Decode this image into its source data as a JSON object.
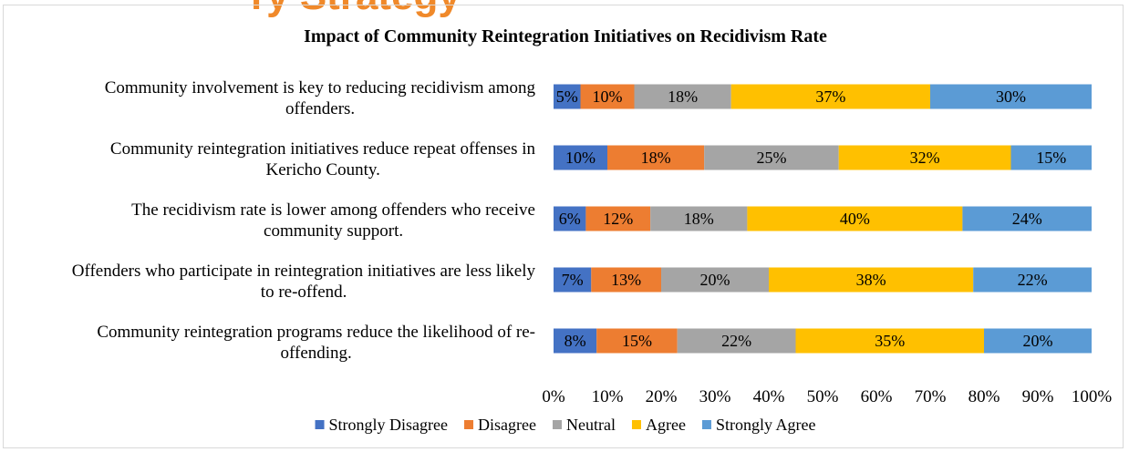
{
  "page_header": {
    "partial_text": "ry Strategy"
  },
  "colors": {
    "strongly_disagree": "#4472c4",
    "disagree": "#ed7d31",
    "neutral": "#a5a5a5",
    "agree": "#ffc000",
    "strongly_agree": "#5b9bd5"
  },
  "chart_data": {
    "type": "bar",
    "orientation": "horizontal",
    "stacked": "100%",
    "title": "Impact of Community Reintegration Initiatives on Recidivism Rate",
    "categories": [
      [
        "Community involvement is key to reducing recidivism among",
        "offenders."
      ],
      [
        "Community reintegration initiatives reduce repeat offenses in",
        "Kericho County."
      ],
      [
        "The recidivism rate is lower among offenders who receive",
        "community support."
      ],
      [
        "Offenders who participate in reintegration initiatives are less likely",
        "to re-offend."
      ],
      [
        "Community reintegration programs reduce the likelihood of re-",
        "offending."
      ]
    ],
    "series": [
      {
        "name": "Strongly Disagree",
        "color": "#4472c4",
        "values": [
          5,
          10,
          6,
          7,
          8
        ]
      },
      {
        "name": "Disagree",
        "color": "#ed7d31",
        "values": [
          10,
          18,
          12,
          13,
          15
        ]
      },
      {
        "name": "Neutral",
        "color": "#a5a5a5",
        "values": [
          18,
          25,
          18,
          20,
          22
        ]
      },
      {
        "name": "Agree",
        "color": "#ffc000",
        "values": [
          37,
          32,
          40,
          38,
          35
        ]
      },
      {
        "name": "Strongly Agree",
        "color": "#5b9bd5",
        "values": [
          30,
          15,
          24,
          22,
          20
        ]
      }
    ],
    "xlim": [
      0,
      100
    ],
    "xticks": [
      "0%",
      "10%",
      "20%",
      "30%",
      "40%",
      "50%",
      "60%",
      "70%",
      "80%",
      "90%",
      "100%"
    ],
    "data_label_suffix": "%",
    "grid": false,
    "legend_position": "bottom"
  }
}
